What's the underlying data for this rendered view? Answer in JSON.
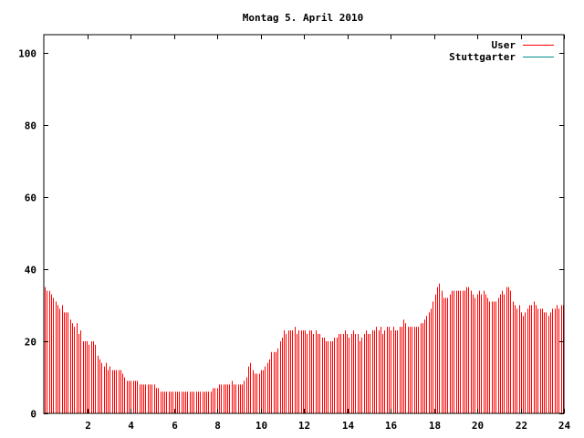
{
  "chart_data": {
    "type": "bar",
    "title": "Montag 5. April 2010",
    "xlabel": "",
    "ylabel": "",
    "xlim": [
      0,
      24
    ],
    "ylim": [
      0,
      105
    ],
    "x_ticks": [
      2,
      4,
      6,
      8,
      10,
      12,
      14,
      16,
      18,
      20,
      22,
      24
    ],
    "y_ticks": [
      0,
      20,
      40,
      60,
      80,
      100
    ],
    "grid": false,
    "legend_position": "top-right",
    "series": [
      {
        "name": "User",
        "color": "#ff0000",
        "style": "impulses",
        "sample_interval_hours": 0.0833,
        "values": [
          35,
          34,
          34,
          33,
          32,
          31,
          30,
          29,
          30,
          28,
          28,
          28,
          26,
          25,
          24,
          25,
          22,
          23,
          20,
          20,
          20,
          19,
          20,
          20,
          19,
          16,
          15,
          14,
          13,
          14,
          12,
          13,
          12,
          12,
          12,
          12,
          12,
          11,
          10,
          9,
          9,
          9,
          9,
          9,
          9,
          8,
          8,
          8,
          8,
          8,
          8,
          8,
          8,
          7,
          7,
          6,
          6,
          6,
          6,
          6,
          6,
          6,
          6,
          6,
          6,
          6,
          6,
          6,
          6,
          6,
          6,
          6,
          6,
          6,
          6,
          6,
          6,
          6,
          6,
          6,
          7,
          7,
          7,
          8,
          8,
          8,
          8,
          8,
          8,
          9,
          8,
          8,
          8,
          8,
          8,
          9,
          10,
          13,
          14,
          12,
          11,
          11,
          11,
          12,
          12,
          13,
          14,
          15,
          17,
          17,
          17,
          18,
          20,
          21,
          23,
          22,
          23,
          23,
          23,
          24,
          22,
          23,
          23,
          23,
          23,
          22,
          23,
          23,
          22,
          23,
          22,
          22,
          21,
          21,
          20,
          20,
          20,
          20,
          21,
          21,
          22,
          22,
          22,
          23,
          22,
          21,
          22,
          23,
          22,
          22,
          20,
          21,
          22,
          23,
          22,
          22,
          23,
          23,
          24,
          23,
          24,
          22,
          23,
          24,
          24,
          23,
          24,
          23,
          23,
          24,
          24,
          26,
          25,
          24,
          24,
          24,
          24,
          24,
          24,
          25,
          25,
          26,
          27,
          28,
          29,
          31,
          33,
          35,
          36,
          34,
          32,
          32,
          32,
          33,
          34,
          34,
          34,
          34,
          34,
          34,
          34,
          35,
          35,
          34,
          33,
          32,
          33,
          34,
          33,
          34,
          33,
          32,
          31,
          31,
          31,
          31,
          32,
          33,
          34,
          33,
          35,
          35,
          34,
          31,
          30,
          29,
          30,
          28,
          27,
          28,
          29,
          30,
          30,
          31,
          30,
          29,
          29,
          29,
          28,
          28,
          27,
          28,
          29,
          29,
          30,
          29,
          30,
          30
        ]
      },
      {
        "name": "Stuttgarter",
        "color": "#008b8b",
        "style": "impulses",
        "values": []
      }
    ]
  }
}
